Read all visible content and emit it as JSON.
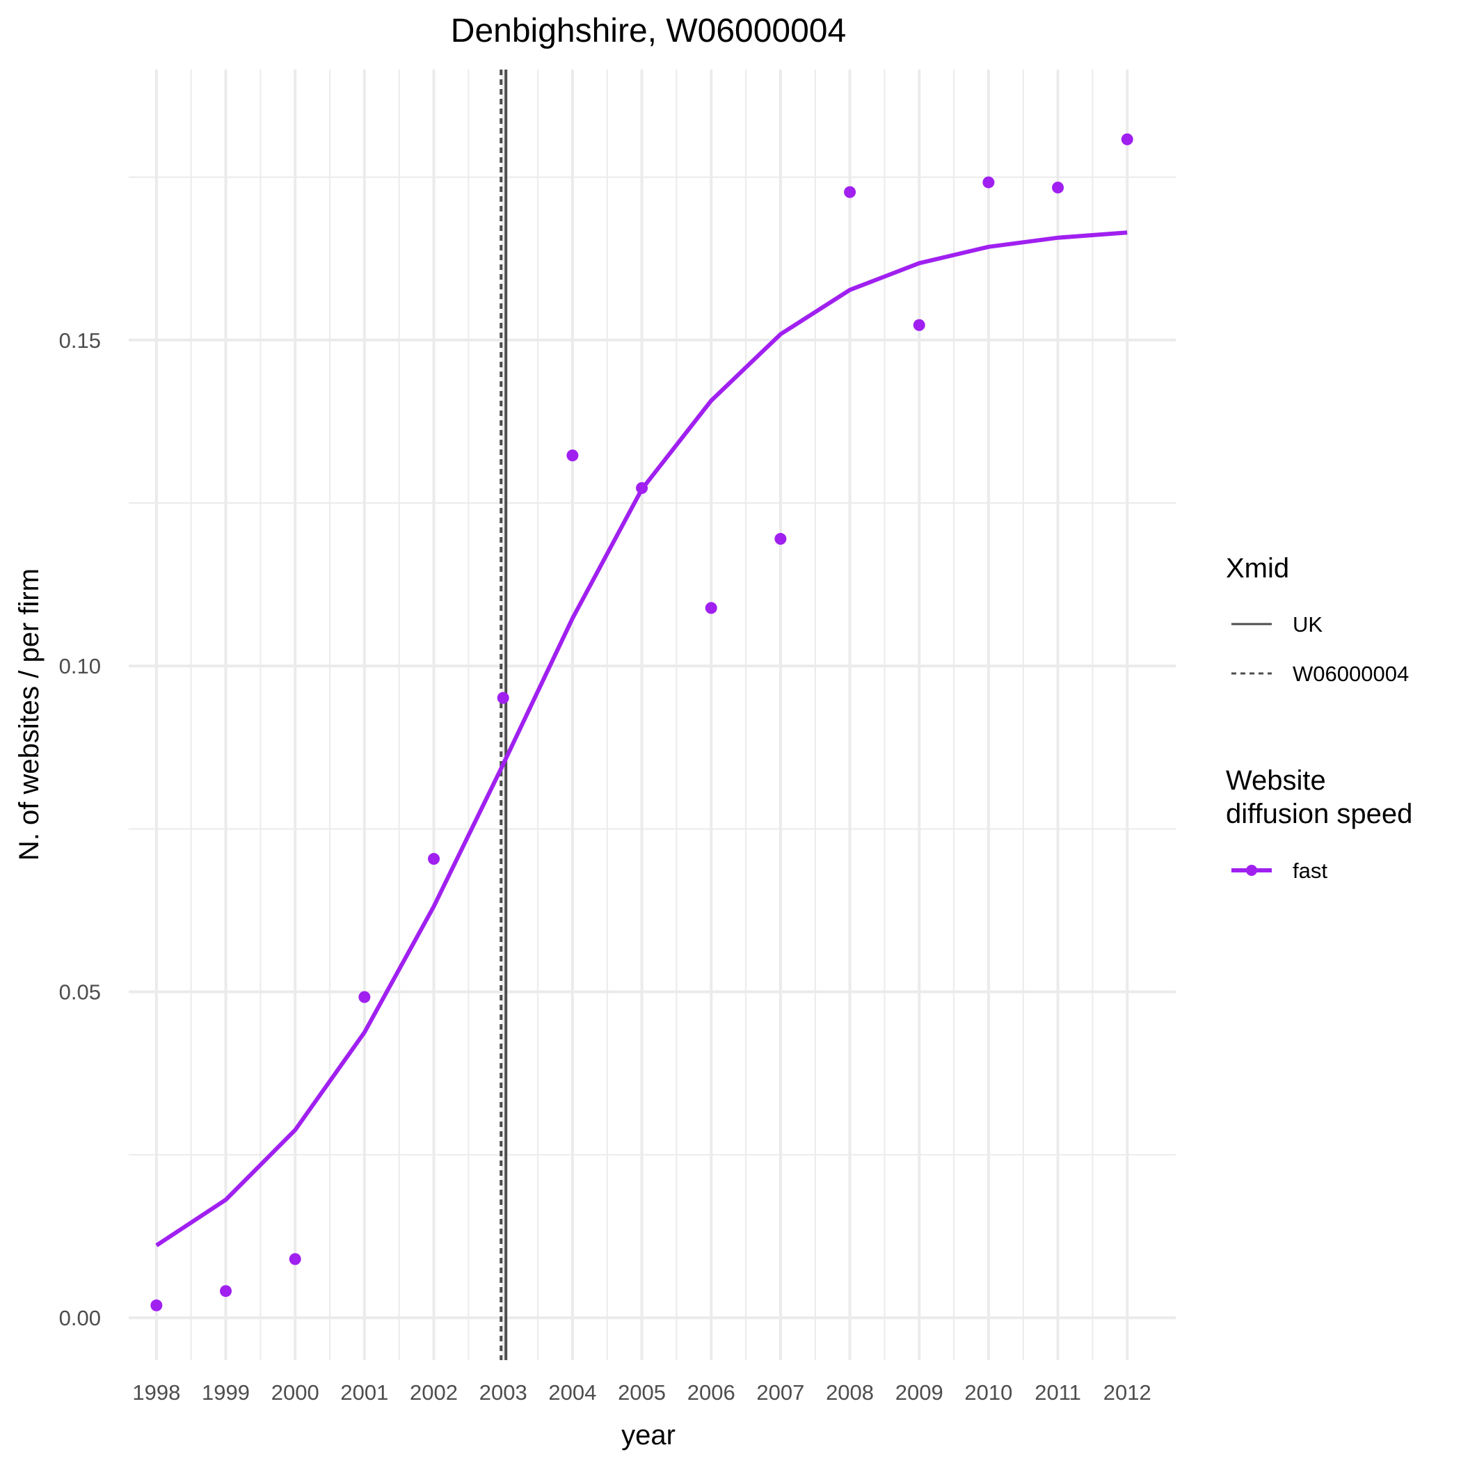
{
  "chart_data": {
    "type": "line",
    "title": "Denbighshire, W06000004",
    "xlabel": "year",
    "ylabel": "N. of websites / per firm",
    "x_ticks": [
      "1998",
      "1999",
      "2000",
      "2001",
      "2002",
      "2003",
      "2004",
      "2005",
      "2006",
      "2007",
      "2008",
      "2009",
      "2010",
      "2011",
      "2012"
    ],
    "y_ticks": [
      "0.00",
      "0.05",
      "0.10",
      "0.15"
    ],
    "xlim": [
      1997.6,
      2012.7
    ],
    "ylim": [
      -0.0065,
      0.1915
    ],
    "grid": true,
    "legend_position": "right",
    "series": [
      {
        "name": "fast",
        "kind": "line",
        "color": "#A020F0",
        "x": [
          1998,
          1999,
          2000,
          2001,
          2002,
          2003,
          2004,
          2005,
          2006,
          2007,
          2008,
          2009,
          2010,
          2011,
          2012
        ],
        "y": [
          0.0111,
          0.0181,
          0.0288,
          0.0438,
          0.0631,
          0.0849,
          0.1073,
          0.1271,
          0.1407,
          0.1509,
          0.1577,
          0.1618,
          0.1643,
          0.1657,
          0.1665
        ]
      },
      {
        "name": "fast",
        "kind": "points",
        "color": "#A020F0",
        "x": [
          1998,
          1999,
          2000,
          2001,
          2002,
          2003,
          2004,
          2005,
          2006,
          2007,
          2008,
          2009,
          2010,
          2011,
          2012
        ],
        "y": [
          0.0019,
          0.0041,
          0.009,
          0.0492,
          0.0704,
          0.0951,
          0.1323,
          0.1273,
          0.1089,
          0.1195,
          0.1727,
          0.1523,
          0.1742,
          0.1734,
          0.1808
        ]
      }
    ],
    "vlines": [
      {
        "name": "UK",
        "x": 2003.04,
        "linetype": "solid",
        "color": "#4d4d4d"
      },
      {
        "name": "W06000004",
        "x": 2002.97,
        "linetype": "dashed",
        "color": "#4d4d4d"
      }
    ],
    "legends": [
      {
        "title": "Xmid",
        "entries": [
          "UK",
          "W06000004"
        ]
      },
      {
        "title": [
          "Website",
          "diffusion speed"
        ],
        "entries": [
          "fast"
        ]
      }
    ]
  }
}
